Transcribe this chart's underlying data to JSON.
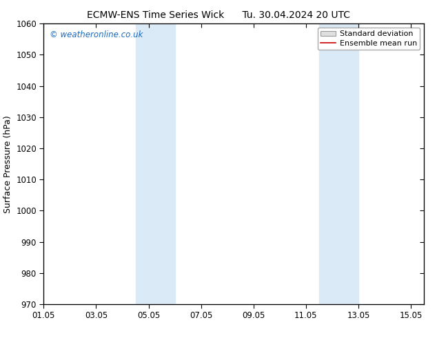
{
  "title_left": "ECMW-ENS Time Series Wick",
  "title_right": "Tu. 30.04.2024 20 UTC",
  "ylabel": "Surface Pressure (hPa)",
  "xlabel": "",
  "ylim": [
    970,
    1060
  ],
  "xlim": [
    0,
    14.5
  ],
  "yticks": [
    970,
    980,
    990,
    1000,
    1010,
    1020,
    1030,
    1040,
    1050,
    1060
  ],
  "xtick_labels": [
    "01.05",
    "03.05",
    "05.05",
    "07.05",
    "09.05",
    "11.05",
    "13.05",
    "15.05"
  ],
  "xtick_positions": [
    0.0,
    2.0,
    4.0,
    6.0,
    8.0,
    10.0,
    12.0,
    14.0
  ],
  "shaded_regions": [
    {
      "xmin": 3.5,
      "xmax": 5.0
    },
    {
      "xmin": 10.5,
      "xmax": 12.0
    }
  ],
  "shaded_color": "#daeaf6",
  "background_color": "#ffffff",
  "watermark_text": "© weatheronline.co.uk",
  "watermark_color": "#1a6bbf",
  "legend_items": [
    {
      "label": "Standard deviation",
      "color": "#cccccc",
      "type": "patch"
    },
    {
      "label": "Ensemble mean run",
      "color": "#cc0000",
      "type": "line"
    }
  ],
  "title_fontsize": 10,
  "axis_label_fontsize": 9,
  "tick_fontsize": 8.5,
  "watermark_fontsize": 8.5,
  "legend_fontsize": 8
}
